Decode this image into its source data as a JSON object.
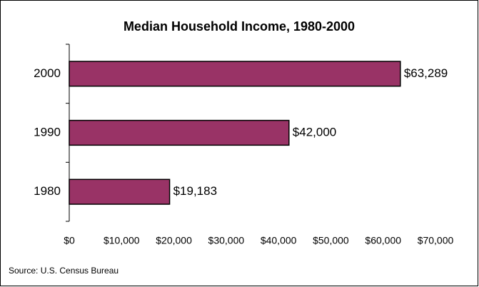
{
  "chart_data": {
    "type": "bar",
    "orientation": "horizontal",
    "title": "Median Household Income, 1980-2000",
    "categories": [
      "2000",
      "1990",
      "1980"
    ],
    "values": [
      63289,
      42000,
      19183
    ],
    "value_labels": [
      "$63,289",
      "$42,000",
      "$19,183"
    ],
    "color": "#993366",
    "xlim": [
      0,
      70000
    ],
    "xticks": [
      {
        "value": 0,
        "label": "$0"
      },
      {
        "value": 10000,
        "label": "$10,000"
      },
      {
        "value": 20000,
        "label": "$20,000"
      },
      {
        "value": 30000,
        "label": "$30,000"
      },
      {
        "value": 40000,
        "label": "$40,000"
      },
      {
        "value": 50000,
        "label": "$50,000"
      },
      {
        "value": 60000,
        "label": "$60,000"
      },
      {
        "value": 70000,
        "label": "$70,000"
      }
    ],
    "grid": false,
    "source": "Source: U.S. Census Bureau"
  }
}
